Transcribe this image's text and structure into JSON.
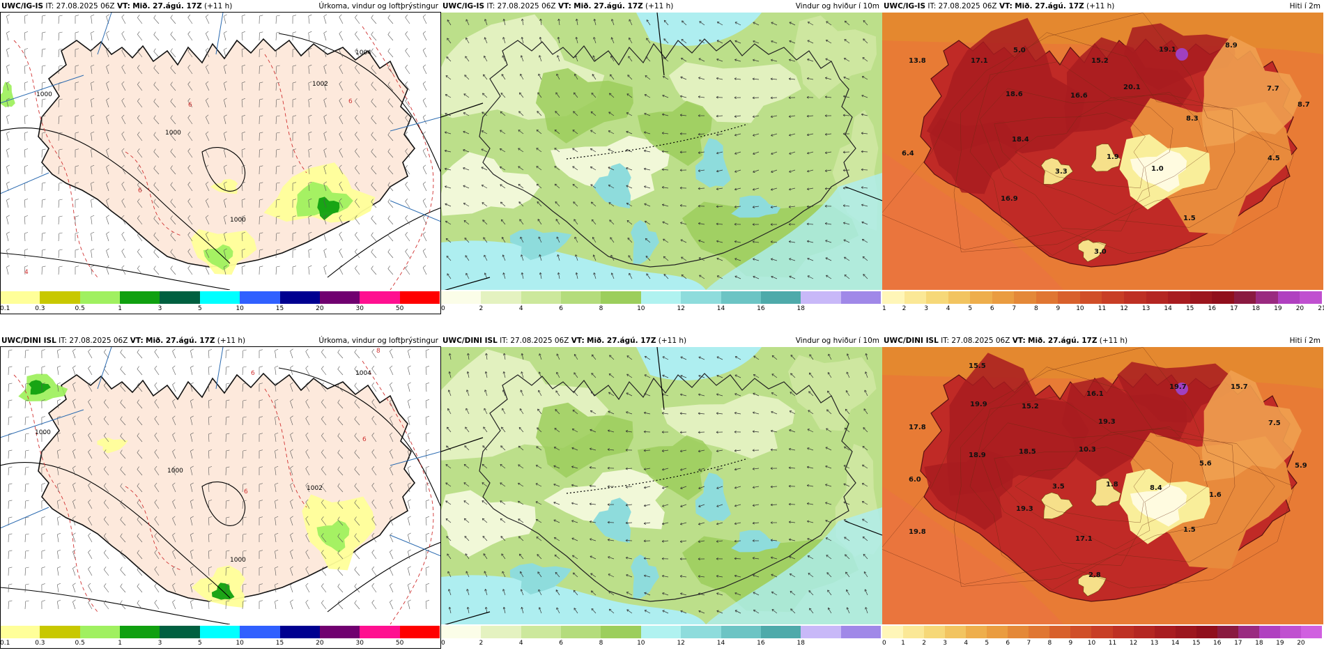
{
  "common": {
    "it_label": "IT:",
    "it_value": "27.08.2025 06Z",
    "vt_label": "VT:",
    "vt_value": "Mið. 27.ágú. 17Z",
    "lead": "(+11 h)"
  },
  "rows": [
    {
      "model": "UWC/IG-IS",
      "panels": [
        {
          "kind": "precip",
          "title": "Úrkoma, vindur og loftþrýstingur",
          "labels": [
            {
              "t": "1000"
            },
            {
              "t": "1004"
            },
            {
              "t": "1002"
            },
            {
              "t": "1000"
            },
            {
              "t": "1000"
            },
            {
              "t": "6"
            },
            {
              "t": "6"
            },
            {
              "t": "6"
            },
            {
              "t": "4"
            }
          ]
        },
        {
          "kind": "wind",
          "title": "Vindur og hviður í 10m",
          "labels": []
        },
        {
          "kind": "temp",
          "title": "Hiti í 2m",
          "labels": [
            {
              "t": "13.8"
            },
            {
              "t": "17.1"
            },
            {
              "t": "5.0"
            },
            {
              "t": "19.1"
            },
            {
              "t": "8.9"
            },
            {
              "t": "15.2"
            },
            {
              "t": "20.1"
            },
            {
              "t": "16.6"
            },
            {
              "t": "18.6"
            },
            {
              "t": "7.7"
            },
            {
              "t": "8.7"
            },
            {
              "t": "8.3"
            },
            {
              "t": "18.4"
            },
            {
              "t": "6.4"
            },
            {
              "t": "1.9"
            },
            {
              "t": "3.3"
            },
            {
              "t": "1.0"
            },
            {
              "t": "4.5"
            },
            {
              "t": "16.9"
            },
            {
              "t": "1.5"
            },
            {
              "t": "3.0"
            }
          ]
        }
      ]
    },
    {
      "model": "UWC/DINI ISL",
      "panels": [
        {
          "kind": "precip",
          "title": "Úrkoma, vindur og loftþrýstingur",
          "labels": [
            {
              "t": "1004"
            },
            {
              "t": "1000"
            },
            {
              "t": "1000"
            },
            {
              "t": "1002"
            },
            {
              "t": "1000"
            },
            {
              "t": "8"
            },
            {
              "t": "6"
            },
            {
              "t": "6"
            },
            {
              "t": "6"
            }
          ]
        },
        {
          "kind": "wind",
          "title": "Vindur og hviður í 10m",
          "labels": []
        },
        {
          "kind": "temp",
          "title": "Hiti í 2m",
          "labels": [
            {
              "t": "15.5"
            },
            {
              "t": "19.9"
            },
            {
              "t": "15.2"
            },
            {
              "t": "16.1"
            },
            {
              "t": "19.7"
            },
            {
              "t": "15.7"
            },
            {
              "t": "17.8"
            },
            {
              "t": "19.3"
            },
            {
              "t": "7.5"
            },
            {
              "t": "18.5"
            },
            {
              "t": "10.3"
            },
            {
              "t": "18.9"
            },
            {
              "t": "5.6"
            },
            {
              "t": "5.9"
            },
            {
              "t": "6.0"
            },
            {
              "t": "3.5"
            },
            {
              "t": "1.8"
            },
            {
              "t": "8.4"
            },
            {
              "t": "1.6"
            },
            {
              "t": "19.3"
            },
            {
              "t": "1.5"
            },
            {
              "t": "19.8"
            },
            {
              "t": "17.1"
            },
            {
              "t": "2.8"
            }
          ]
        }
      ]
    }
  ],
  "legends": {
    "precip": {
      "colors": [
        "#ffff99",
        "#c8c800",
        "#a0f060",
        "#10a010",
        "#006040",
        "#00ffff",
        "#3060ff",
        "#000090",
        "#700070",
        "#ff1090",
        "#ff0000"
      ],
      "ticks": [
        "0.1",
        "0.3",
        "0.5",
        "1",
        "3",
        "5",
        "10",
        "15",
        "20",
        "30",
        "50"
      ]
    },
    "wind": {
      "colors": [
        "#fbfde8",
        "#e4f2c0",
        "#cce89c",
        "#b4dc7c",
        "#9cce5c",
        "#b0f2f0",
        "#8edcdc",
        "#6cc4c4",
        "#4eaaaa",
        "#c8b8f8",
        "#a088e8"
      ],
      "ticks": [
        "0",
        "2",
        "4",
        "6",
        "8",
        "10",
        "12",
        "14",
        "16",
        "18"
      ]
    },
    "temp_top": {
      "colors": [
        "#fff6b8",
        "#fbe896",
        "#f6d878",
        "#f2c460",
        "#eeae4c",
        "#ea9c40",
        "#e48838",
        "#e07632",
        "#d8602c",
        "#d04e28",
        "#c83e26",
        "#be3024",
        "#b42622",
        "#a81c20",
        "#9c161e",
        "#900f1c",
        "#8a1a40",
        "#9a2a80",
        "#b040c0",
        "#c050d0"
      ],
      "ticks": [
        "1",
        "2",
        "3",
        "4",
        "5",
        "6",
        "7",
        "8",
        "9",
        "10",
        "11",
        "12",
        "13",
        "14",
        "15",
        "16",
        "17",
        "18",
        "19",
        "20",
        "21"
      ]
    },
    "temp_bottom": {
      "colors": [
        "#fff6b8",
        "#fbe896",
        "#f6d878",
        "#f2c460",
        "#eeae4c",
        "#ea9c40",
        "#e48838",
        "#e07632",
        "#d8602c",
        "#d04e28",
        "#c83e26",
        "#be3024",
        "#b42622",
        "#a81c20",
        "#9c161e",
        "#900f1c",
        "#8a1a40",
        "#9a2a80",
        "#b040c0",
        "#c050d0",
        "#d060e0"
      ],
      "ticks": [
        "0",
        "1",
        "2",
        "3",
        "4",
        "5",
        "6",
        "7",
        "8",
        "9",
        "10",
        "11",
        "12",
        "13",
        "14",
        "15",
        "16",
        "17",
        "18",
        "19",
        "20"
      ]
    }
  }
}
